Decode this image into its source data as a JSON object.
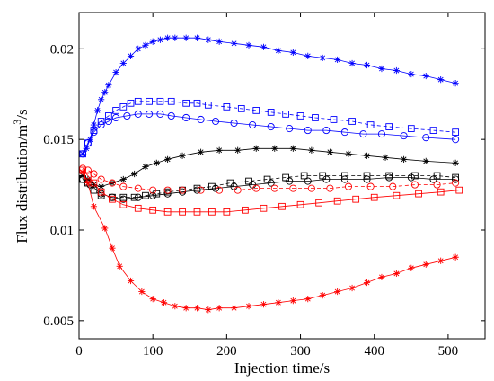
{
  "chart_data": {
    "type": "line",
    "xlabel": "Injection time/s",
    "ylabel_main": "Flux distribution/m",
    "ylabel_sup": "3",
    "ylabel_tail": "/s",
    "xlim": [
      0,
      550
    ],
    "ylim": [
      0.004,
      0.022
    ],
    "xticks": [
      0,
      100,
      200,
      300,
      400,
      500
    ],
    "xtick_labels": [
      "0",
      "100",
      "200",
      "300",
      "400",
      "500"
    ],
    "yticks": [
      0.005,
      0.01,
      0.015,
      0.02
    ],
    "ytick_labels": [
      "0.005",
      "0.01",
      "0.015",
      "0.02"
    ],
    "grid": false,
    "legend": "none",
    "series": [
      {
        "color": "#0000ff",
        "marker": "star",
        "dash": "solid",
        "points": [
          [
            5,
            0.0142
          ],
          [
            10,
            0.0145
          ],
          [
            15,
            0.015
          ],
          [
            20,
            0.0158
          ],
          [
            25,
            0.0166
          ],
          [
            30,
            0.0172
          ],
          [
            35,
            0.0176
          ],
          [
            40,
            0.018
          ],
          [
            50,
            0.0187
          ],
          [
            60,
            0.0192
          ],
          [
            70,
            0.0196
          ],
          [
            80,
            0.02
          ],
          [
            90,
            0.0202
          ],
          [
            100,
            0.0204
          ],
          [
            110,
            0.0205
          ],
          [
            120,
            0.0206
          ],
          [
            130,
            0.0206
          ],
          [
            145,
            0.0206
          ],
          [
            160,
            0.0206
          ],
          [
            175,
            0.0205
          ],
          [
            190,
            0.0204
          ],
          [
            210,
            0.0203
          ],
          [
            230,
            0.0202
          ],
          [
            250,
            0.0201
          ],
          [
            270,
            0.0199
          ],
          [
            290,
            0.0198
          ],
          [
            310,
            0.0196
          ],
          [
            330,
            0.0195
          ],
          [
            350,
            0.0194
          ],
          [
            370,
            0.0192
          ],
          [
            390,
            0.0191
          ],
          [
            410,
            0.0189
          ],
          [
            430,
            0.0188
          ],
          [
            450,
            0.0186
          ],
          [
            470,
            0.0185
          ],
          [
            490,
            0.0183
          ],
          [
            510,
            0.0181
          ]
        ]
      },
      {
        "color": "#0000ff",
        "marker": "square",
        "dash": "dash",
        "points": [
          [
            5,
            0.0142
          ],
          [
            12,
            0.0148
          ],
          [
            20,
            0.0155
          ],
          [
            30,
            0.016
          ],
          [
            40,
            0.0163
          ],
          [
            50,
            0.0166
          ],
          [
            60,
            0.0168
          ],
          [
            70,
            0.017
          ],
          [
            80,
            0.0171
          ],
          [
            95,
            0.0171
          ],
          [
            110,
            0.0171
          ],
          [
            125,
            0.0171
          ],
          [
            145,
            0.017
          ],
          [
            160,
            0.017
          ],
          [
            175,
            0.0169
          ],
          [
            200,
            0.0168
          ],
          [
            220,
            0.0167
          ],
          [
            240,
            0.0166
          ],
          [
            260,
            0.0165
          ],
          [
            280,
            0.0164
          ],
          [
            300,
            0.0163
          ],
          [
            320,
            0.0162
          ],
          [
            345,
            0.0161
          ],
          [
            370,
            0.016
          ],
          [
            395,
            0.0158
          ],
          [
            420,
            0.0157
          ],
          [
            450,
            0.0156
          ],
          [
            480,
            0.0155
          ],
          [
            510,
            0.0154
          ]
        ]
      },
      {
        "color": "#0000ff",
        "marker": "circle",
        "dash": "solid",
        "points": [
          [
            5,
            0.0142
          ],
          [
            12,
            0.0148
          ],
          [
            20,
            0.0154
          ],
          [
            30,
            0.0158
          ],
          [
            40,
            0.016
          ],
          [
            50,
            0.0162
          ],
          [
            65,
            0.0163
          ],
          [
            80,
            0.0164
          ],
          [
            95,
            0.0164
          ],
          [
            110,
            0.0164
          ],
          [
            125,
            0.0163
          ],
          [
            145,
            0.0162
          ],
          [
            165,
            0.0161
          ],
          [
            185,
            0.016
          ],
          [
            210,
            0.0159
          ],
          [
            235,
            0.0158
          ],
          [
            260,
            0.0157
          ],
          [
            285,
            0.0156
          ],
          [
            310,
            0.0155
          ],
          [
            335,
            0.0155
          ],
          [
            360,
            0.0154
          ],
          [
            385,
            0.0153
          ],
          [
            410,
            0.0153
          ],
          [
            440,
            0.0152
          ],
          [
            470,
            0.0151
          ],
          [
            510,
            0.015
          ]
        ]
      },
      {
        "color": "#000000",
        "marker": "star",
        "dash": "solid",
        "points": [
          [
            5,
            0.013
          ],
          [
            12,
            0.0128
          ],
          [
            20,
            0.0125
          ],
          [
            30,
            0.0124
          ],
          [
            45,
            0.0126
          ],
          [
            60,
            0.0128
          ],
          [
            75,
            0.0131
          ],
          [
            90,
            0.0135
          ],
          [
            105,
            0.0137
          ],
          [
            120,
            0.0139
          ],
          [
            140,
            0.0141
          ],
          [
            165,
            0.0143
          ],
          [
            190,
            0.0144
          ],
          [
            215,
            0.0144
          ],
          [
            240,
            0.0145
          ],
          [
            265,
            0.0145
          ],
          [
            290,
            0.0145
          ],
          [
            315,
            0.0144
          ],
          [
            340,
            0.0143
          ],
          [
            365,
            0.0142
          ],
          [
            390,
            0.0141
          ],
          [
            415,
            0.014
          ],
          [
            440,
            0.0139
          ],
          [
            470,
            0.0138
          ],
          [
            510,
            0.0137
          ]
        ]
      },
      {
        "color": "#000000",
        "marker": "square",
        "dash": "dash",
        "points": [
          [
            5,
            0.0128
          ],
          [
            12,
            0.0126
          ],
          [
            20,
            0.0122
          ],
          [
            30,
            0.0119
          ],
          [
            45,
            0.0118
          ],
          [
            60,
            0.0118
          ],
          [
            75,
            0.0118
          ],
          [
            90,
            0.0119
          ],
          [
            105,
            0.012
          ],
          [
            120,
            0.0121
          ],
          [
            140,
            0.0122
          ],
          [
            160,
            0.0123
          ],
          [
            180,
            0.0124
          ],
          [
            205,
            0.0126
          ],
          [
            230,
            0.0127
          ],
          [
            255,
            0.0128
          ],
          [
            280,
            0.0129
          ],
          [
            305,
            0.013
          ],
          [
            330,
            0.013
          ],
          [
            360,
            0.013
          ],
          [
            390,
            0.013
          ],
          [
            420,
            0.013
          ],
          [
            455,
            0.013
          ],
          [
            485,
            0.013
          ],
          [
            510,
            0.0129
          ]
        ]
      },
      {
        "color": "#000000",
        "marker": "circle",
        "dash": "solid",
        "points": [
          [
            5,
            0.0128
          ],
          [
            15,
            0.0125
          ],
          [
            30,
            0.012
          ],
          [
            45,
            0.0118
          ],
          [
            60,
            0.0117
          ],
          [
            80,
            0.0118
          ],
          [
            100,
            0.0119
          ],
          [
            120,
            0.012
          ],
          [
            140,
            0.0121
          ],
          [
            160,
            0.0122
          ],
          [
            185,
            0.0123
          ],
          [
            210,
            0.0124
          ],
          [
            235,
            0.0125
          ],
          [
            260,
            0.0126
          ],
          [
            285,
            0.0127
          ],
          [
            310,
            0.0127
          ],
          [
            335,
            0.0128
          ],
          [
            360,
            0.0128
          ],
          [
            390,
            0.0128
          ],
          [
            420,
            0.0129
          ],
          [
            450,
            0.0129
          ],
          [
            480,
            0.0128
          ],
          [
            510,
            0.0128
          ]
        ]
      },
      {
        "color": "#ff0000",
        "marker": "circle",
        "dash": "dash",
        "points": [
          [
            5,
            0.0134
          ],
          [
            12,
            0.0133
          ],
          [
            20,
            0.0131
          ],
          [
            30,
            0.0128
          ],
          [
            45,
            0.0126
          ],
          [
            60,
            0.0124
          ],
          [
            80,
            0.0123
          ],
          [
            100,
            0.0122
          ],
          [
            120,
            0.0122
          ],
          [
            140,
            0.0122
          ],
          [
            165,
            0.0122
          ],
          [
            190,
            0.0122
          ],
          [
            215,
            0.0122
          ],
          [
            240,
            0.0123
          ],
          [
            265,
            0.0123
          ],
          [
            290,
            0.0123
          ],
          [
            315,
            0.0123
          ],
          [
            340,
            0.0123
          ],
          [
            365,
            0.0124
          ],
          [
            395,
            0.0124
          ],
          [
            425,
            0.0124
          ],
          [
            455,
            0.0125
          ],
          [
            485,
            0.0125
          ],
          [
            510,
            0.0126
          ]
        ]
      },
      {
        "color": "#ff0000",
        "marker": "square",
        "dash": "solid",
        "points": [
          [
            5,
            0.0133
          ],
          [
            12,
            0.013
          ],
          [
            20,
            0.0126
          ],
          [
            30,
            0.0121
          ],
          [
            45,
            0.0117
          ],
          [
            60,
            0.0114
          ],
          [
            80,
            0.0112
          ],
          [
            100,
            0.0111
          ],
          [
            120,
            0.011
          ],
          [
            140,
            0.011
          ],
          [
            160,
            0.011
          ],
          [
            180,
            0.011
          ],
          [
            200,
            0.011
          ],
          [
            225,
            0.0111
          ],
          [
            250,
            0.0112
          ],
          [
            275,
            0.0113
          ],
          [
            300,
            0.0114
          ],
          [
            325,
            0.0115
          ],
          [
            350,
            0.0116
          ],
          [
            375,
            0.0117
          ],
          [
            400,
            0.0118
          ],
          [
            430,
            0.0119
          ],
          [
            460,
            0.012
          ],
          [
            490,
            0.0121
          ],
          [
            515,
            0.0122
          ]
        ]
      },
      {
        "color": "#ff0000",
        "marker": "star",
        "dash": "solid",
        "points": [
          [
            5,
            0.0132
          ],
          [
            12,
            0.0126
          ],
          [
            20,
            0.0113
          ],
          [
            35,
            0.0101
          ],
          [
            45,
            0.009
          ],
          [
            55,
            0.008
          ],
          [
            70,
            0.0072
          ],
          [
            85,
            0.0066
          ],
          [
            100,
            0.0062
          ],
          [
            115,
            0.006
          ],
          [
            130,
            0.0058
          ],
          [
            145,
            0.0057
          ],
          [
            160,
            0.0057
          ],
          [
            175,
            0.0056
          ],
          [
            190,
            0.0057
          ],
          [
            210,
            0.0057
          ],
          [
            230,
            0.0058
          ],
          [
            250,
            0.0059
          ],
          [
            270,
            0.006
          ],
          [
            290,
            0.0061
          ],
          [
            310,
            0.0062
          ],
          [
            330,
            0.0064
          ],
          [
            350,
            0.0066
          ],
          [
            370,
            0.0068
          ],
          [
            390,
            0.0071
          ],
          [
            410,
            0.0074
          ],
          [
            430,
            0.0076
          ],
          [
            450,
            0.0079
          ],
          [
            470,
            0.0081
          ],
          [
            490,
            0.0083
          ],
          [
            510,
            0.0085
          ]
        ]
      }
    ]
  }
}
